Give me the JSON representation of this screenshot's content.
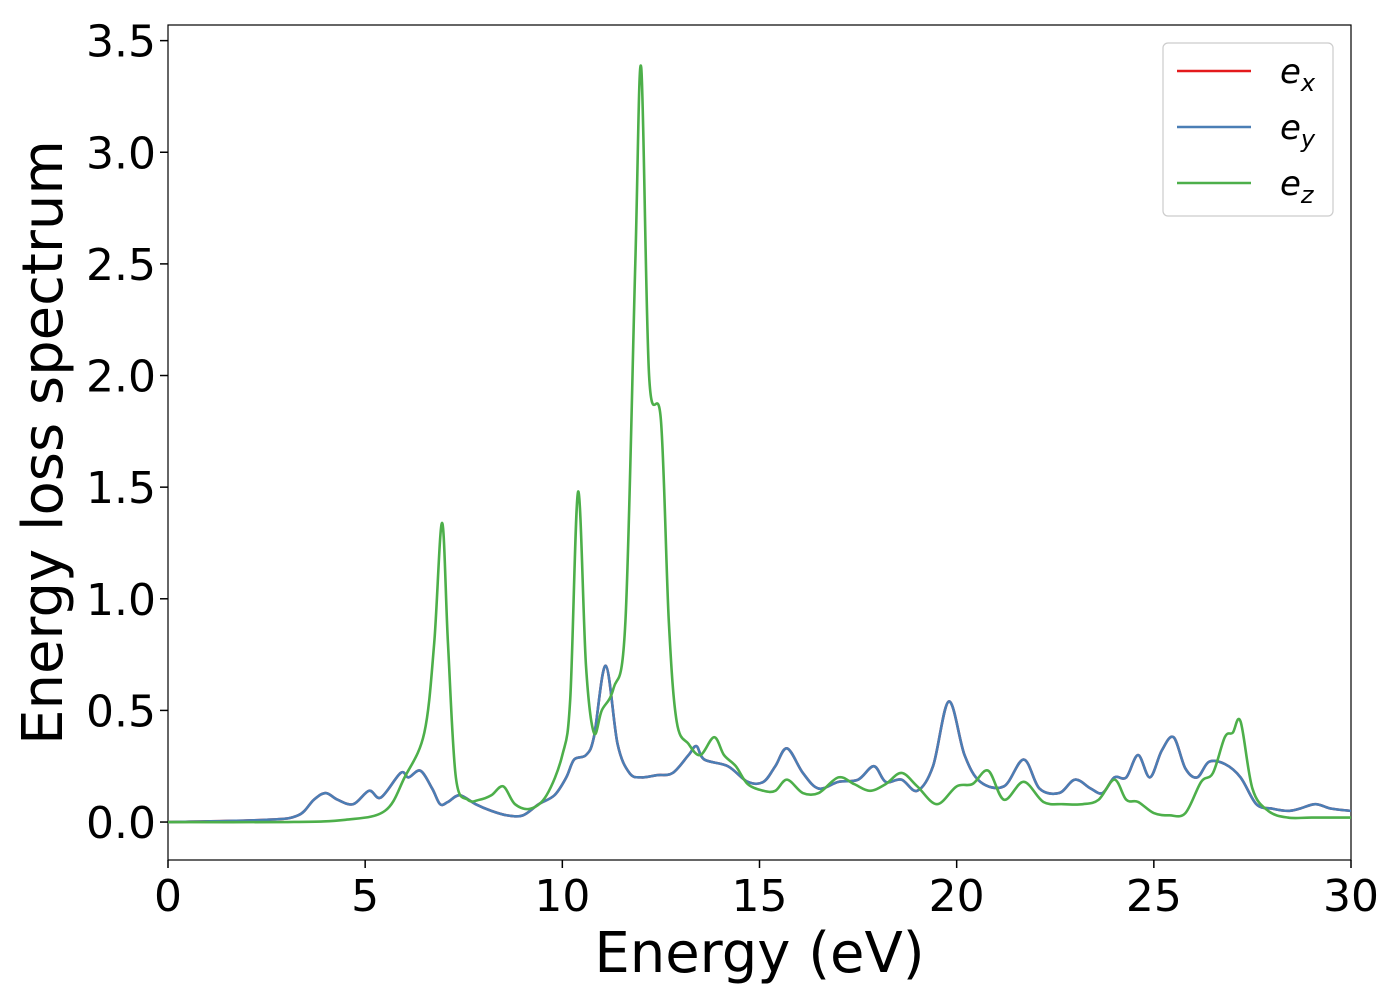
{
  "chart_data": {
    "type": "line",
    "title": "",
    "xlabel": "Energy (eV)",
    "ylabel": "Energy loss spectrum",
    "xlim": [
      0,
      30
    ],
    "ylim": [
      -0.17,
      3.57
    ],
    "xticks": [
      0,
      5,
      10,
      15,
      20,
      25,
      30
    ],
    "xtick_labels": [
      "0",
      "5",
      "10",
      "15",
      "20",
      "25",
      "30"
    ],
    "yticks": [
      0.0,
      0.5,
      1.0,
      1.5,
      2.0,
      2.5,
      3.0,
      3.5
    ],
    "ytick_labels": [
      "0.0",
      "0.5",
      "1.0",
      "1.5",
      "2.0",
      "2.5",
      "3.0",
      "3.5"
    ],
    "grid": false,
    "legend_position": "top-right",
    "series": [
      {
        "name": "e_x",
        "legend_base": "e",
        "legend_sub": "x",
        "color": "#e41a1c",
        "note_same_as": "e_y",
        "x": [
          0,
          2.5,
          3.3,
          3.7,
          4.0,
          4.3,
          4.7,
          5.1,
          5.4,
          5.9,
          6.1,
          6.4,
          6.7,
          6.9,
          7.1,
          7.4,
          7.8,
          8.2,
          8.6,
          9.0,
          9.4,
          9.8,
          10.1,
          10.3,
          10.6,
          10.8,
          11.1,
          11.4,
          11.7,
          12.0,
          12.4,
          12.8,
          13.2,
          13.4,
          13.6,
          14.2,
          14.7,
          15.1,
          15.4,
          15.7,
          16.1,
          16.5,
          17.0,
          17.5,
          17.9,
          18.2,
          18.6,
          19.0,
          19.4,
          19.8,
          20.2,
          20.6,
          21.2,
          21.7,
          22.1,
          22.6,
          23.0,
          23.4,
          23.7,
          24.0,
          24.3,
          24.6,
          24.9,
          25.2,
          25.5,
          25.8,
          26.1,
          26.4,
          26.8,
          27.2,
          27.6,
          28.0,
          28.4,
          28.7,
          29.1,
          29.5,
          30.0
        ],
        "y": [
          0.0,
          0.01,
          0.03,
          0.1,
          0.13,
          0.1,
          0.08,
          0.14,
          0.11,
          0.22,
          0.2,
          0.23,
          0.15,
          0.08,
          0.09,
          0.12,
          0.08,
          0.05,
          0.03,
          0.03,
          0.08,
          0.12,
          0.2,
          0.28,
          0.3,
          0.38,
          0.7,
          0.35,
          0.22,
          0.2,
          0.21,
          0.22,
          0.3,
          0.34,
          0.28,
          0.25,
          0.18,
          0.18,
          0.25,
          0.33,
          0.22,
          0.15,
          0.18,
          0.19,
          0.25,
          0.18,
          0.19,
          0.14,
          0.25,
          0.54,
          0.3,
          0.18,
          0.16,
          0.28,
          0.15,
          0.13,
          0.19,
          0.15,
          0.13,
          0.2,
          0.2,
          0.3,
          0.2,
          0.32,
          0.38,
          0.24,
          0.2,
          0.27,
          0.26,
          0.2,
          0.08,
          0.06,
          0.05,
          0.06,
          0.08,
          0.06,
          0.05
        ]
      },
      {
        "name": "e_y",
        "legend_base": "e",
        "legend_sub": "y",
        "color": "#4a7eb5",
        "x": [
          0,
          2.5,
          3.3,
          3.7,
          4.0,
          4.3,
          4.7,
          5.1,
          5.4,
          5.9,
          6.1,
          6.4,
          6.7,
          6.9,
          7.1,
          7.4,
          7.8,
          8.2,
          8.6,
          9.0,
          9.4,
          9.8,
          10.1,
          10.3,
          10.6,
          10.8,
          11.1,
          11.4,
          11.7,
          12.0,
          12.4,
          12.8,
          13.2,
          13.4,
          13.6,
          14.2,
          14.7,
          15.1,
          15.4,
          15.7,
          16.1,
          16.5,
          17.0,
          17.5,
          17.9,
          18.2,
          18.6,
          19.0,
          19.4,
          19.8,
          20.2,
          20.6,
          21.2,
          21.7,
          22.1,
          22.6,
          23.0,
          23.4,
          23.7,
          24.0,
          24.3,
          24.6,
          24.9,
          25.2,
          25.5,
          25.8,
          26.1,
          26.4,
          26.8,
          27.2,
          27.6,
          28.0,
          28.4,
          28.7,
          29.1,
          29.5,
          30.0
        ],
        "y": [
          0.0,
          0.01,
          0.03,
          0.1,
          0.13,
          0.1,
          0.08,
          0.14,
          0.11,
          0.22,
          0.2,
          0.23,
          0.15,
          0.08,
          0.09,
          0.12,
          0.08,
          0.05,
          0.03,
          0.03,
          0.08,
          0.12,
          0.2,
          0.28,
          0.3,
          0.38,
          0.7,
          0.35,
          0.22,
          0.2,
          0.21,
          0.22,
          0.3,
          0.34,
          0.28,
          0.25,
          0.18,
          0.18,
          0.25,
          0.33,
          0.22,
          0.15,
          0.18,
          0.19,
          0.25,
          0.18,
          0.19,
          0.14,
          0.25,
          0.54,
          0.3,
          0.18,
          0.16,
          0.28,
          0.15,
          0.13,
          0.19,
          0.15,
          0.13,
          0.2,
          0.2,
          0.3,
          0.2,
          0.32,
          0.38,
          0.24,
          0.2,
          0.27,
          0.26,
          0.2,
          0.08,
          0.06,
          0.05,
          0.06,
          0.08,
          0.06,
          0.05
        ]
      },
      {
        "name": "e_z",
        "legend_base": "e",
        "legend_sub": "z",
        "color": "#4daf4a",
        "x": [
          0,
          3.0,
          4.5,
          5.5,
          6.0,
          6.5,
          6.75,
          6.95,
          7.1,
          7.3,
          7.6,
          7.9,
          8.2,
          8.5,
          8.8,
          9.2,
          9.6,
          10.0,
          10.2,
          10.4,
          10.6,
          10.8,
          11.0,
          11.3,
          11.6,
          11.85,
          12.0,
          12.2,
          12.5,
          12.7,
          12.9,
          13.2,
          13.5,
          13.85,
          14.1,
          14.4,
          14.7,
          15.1,
          15.4,
          15.7,
          16.1,
          16.5,
          17.0,
          17.4,
          17.8,
          18.2,
          18.6,
          19.0,
          19.5,
          20.0,
          20.4,
          20.8,
          21.2,
          21.7,
          22.2,
          22.7,
          23.2,
          23.6,
          24.0,
          24.3,
          24.6,
          25.0,
          25.4,
          25.8,
          26.2,
          26.5,
          26.8,
          27.0,
          27.2,
          27.5,
          27.9,
          28.4,
          29.0,
          30.0
        ],
        "y": [
          0.0,
          0.0,
          0.01,
          0.05,
          0.2,
          0.4,
          0.8,
          1.34,
          0.8,
          0.2,
          0.1,
          0.1,
          0.12,
          0.16,
          0.08,
          0.06,
          0.12,
          0.3,
          0.55,
          1.48,
          0.7,
          0.4,
          0.5,
          0.6,
          0.9,
          2.5,
          3.38,
          2.0,
          1.8,
          0.9,
          0.45,
          0.35,
          0.3,
          0.38,
          0.3,
          0.25,
          0.17,
          0.14,
          0.14,
          0.19,
          0.13,
          0.13,
          0.2,
          0.17,
          0.14,
          0.17,
          0.22,
          0.16,
          0.08,
          0.16,
          0.17,
          0.23,
          0.1,
          0.18,
          0.09,
          0.08,
          0.08,
          0.1,
          0.19,
          0.1,
          0.09,
          0.04,
          0.03,
          0.04,
          0.18,
          0.22,
          0.38,
          0.4,
          0.45,
          0.15,
          0.05,
          0.02,
          0.02,
          0.02
        ]
      }
    ]
  }
}
